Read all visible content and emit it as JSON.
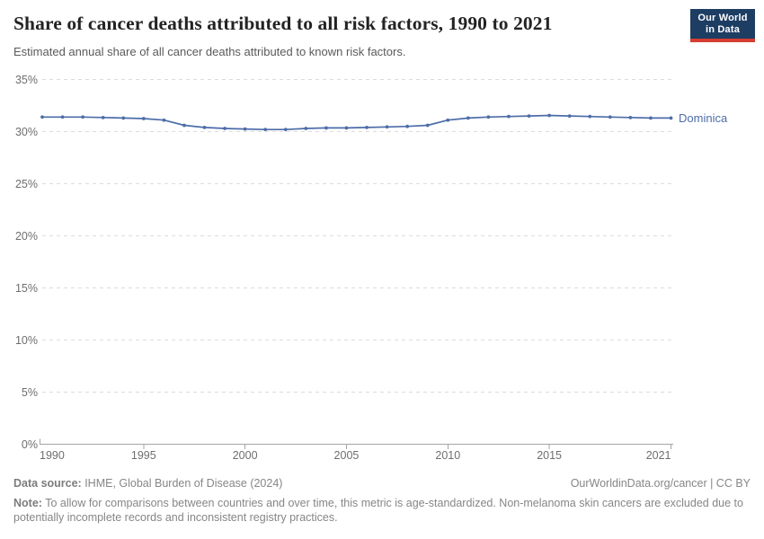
{
  "header": {
    "title": "Share of cancer deaths attributed to all risk factors, 1990 to 2021",
    "subtitle": "Estimated annual share of all cancer deaths attributed to known risk factors.",
    "logo": {
      "line1": "Our World",
      "line2": "in Data",
      "bg_color": "#1d3d63",
      "accent_color": "#d63e32"
    }
  },
  "chart_data": {
    "type": "line",
    "title": "Share of cancer deaths attributed to all risk factors, 1990 to 2021",
    "xlabel": "",
    "ylabel": "",
    "xlim": [
      1990,
      2021
    ],
    "ylim": [
      0,
      35
    ],
    "xticks": [
      1990,
      1995,
      2000,
      2005,
      2010,
      2015,
      2021
    ],
    "yticks": [
      0,
      5,
      10,
      15,
      20,
      25,
      30,
      35
    ],
    "ytick_suffix": "%",
    "grid": "horizontal-dashed",
    "legend": "line-end-label",
    "x": [
      1990,
      1991,
      1992,
      1993,
      1994,
      1995,
      1996,
      1997,
      1998,
      1999,
      2000,
      2001,
      2002,
      2003,
      2004,
      2005,
      2006,
      2007,
      2008,
      2009,
      2010,
      2011,
      2012,
      2013,
      2014,
      2015,
      2016,
      2017,
      2018,
      2019,
      2020,
      2021
    ],
    "series": [
      {
        "name": "Dominica",
        "color": "#4d6da8",
        "values": [
          31.4,
          31.4,
          31.4,
          31.35,
          31.3,
          31.25,
          31.1,
          30.6,
          30.4,
          30.3,
          30.25,
          30.2,
          30.2,
          30.3,
          30.35,
          30.35,
          30.4,
          30.45,
          30.5,
          30.6,
          31.1,
          31.3,
          31.4,
          31.45,
          31.5,
          31.55,
          31.5,
          31.45,
          31.4,
          31.35,
          31.3,
          31.3
        ]
      }
    ]
  },
  "footer": {
    "source_label": "Data source:",
    "source_text": " IHME, Global Burden of Disease (2024)",
    "credit": "OurWorldinData.org/cancer | CC BY",
    "note_label": "Note:",
    "note_text": " To allow for comparisons between countries and over time, this metric is age-standardized. Non-melanoma skin cancers are excluded due to potentially incomplete records and inconsistent registry practices."
  }
}
